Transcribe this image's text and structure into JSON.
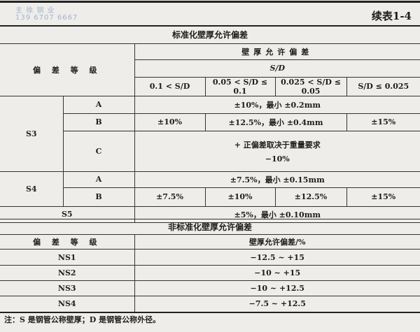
{
  "watermark": {
    "company": "主 徐 钢 业",
    "phone": "139 6707 6667"
  },
  "table_number": "续表1-4",
  "standard": {
    "title": "标准化壁厚允许偏差",
    "grade_header": "偏 差 等 级",
    "tolerance_header": "壁厚允许偏差",
    "ratio_header": "S/D",
    "ranges": [
      "0.1 < S/D",
      "0.05 < S/D ≤ 0.1",
      "0.025 < S/D ≤ 0.05",
      "S/D ≤ 0.025"
    ],
    "s3": {
      "label": "S3",
      "a": {
        "label": "A",
        "value": "±10%，最小 ±0.2mm"
      },
      "b": {
        "label": "B",
        "v1": "±10%",
        "v23": "±12.5%，最小 ±0.4mm",
        "v4": "±15%"
      },
      "c": {
        "label": "C",
        "line1": "+ 正偏差取决于重量要求",
        "line2": "−10%"
      }
    },
    "s4": {
      "label": "S4",
      "a": {
        "label": "A",
        "value": "±7.5%，最小 ±0.15mm"
      },
      "b": {
        "label": "B",
        "v1": "±7.5%",
        "v2": "±10%",
        "v3": "±12.5%",
        "v4": "±15%"
      }
    },
    "s5": {
      "label": "S5",
      "value": "±5%，最小 ±0.10mm"
    }
  },
  "nonstandard": {
    "title": "非标准化壁厚允许偏差",
    "grade_header": "偏 差 等 级",
    "tolerance_header": "壁厚允许偏差/%",
    "rows": [
      {
        "grade": "NS1",
        "value": "−12.5 ~ +15"
      },
      {
        "grade": "NS2",
        "value": "−10 ~ +15"
      },
      {
        "grade": "NS3",
        "value": "−10 ~ +12.5"
      },
      {
        "grade": "NS4",
        "value": "−7.5 ~ +12.5"
      }
    ]
  },
  "note": "注：S 是钢管公称壁厚；D 是钢管公称外径。"
}
